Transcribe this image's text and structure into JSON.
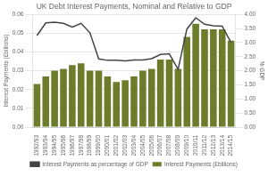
{
  "chart_data": {
    "type": "bar",
    "title": "UK Debt Interest Payments, Nominal and Relative to GDP",
    "categories": [
      "1992/93",
      "1993/94",
      "1994/95",
      "1995/96",
      "1996/97",
      "1997/98",
      "1998/99",
      "1999/00",
      "2000/01",
      "2001/02",
      "2002/03",
      "2003/04",
      "2004/05",
      "2005/06",
      "2006/07",
      "2007/08",
      "2008/09",
      "2009/10",
      "2010/11",
      "2011/12",
      "2012/13",
      "2013/14",
      "2014/15"
    ],
    "series": [
      {
        "name": "Interest Payments (£billions)",
        "type": "bar",
        "color": "#6b7c2a",
        "values": [
          0.023,
          0.027,
          0.03,
          0.031,
          0.033,
          0.034,
          0.03,
          0.03,
          0.027,
          0.024,
          0.025,
          0.027,
          0.03,
          0.031,
          0.036,
          0.036,
          0.031,
          0.048,
          0.055,
          0.052,
          0.052,
          0.052,
          0.046
        ]
      },
      {
        "name": "Interest Payments as percentage of GDP",
        "type": "line",
        "color": "#444444",
        "axis": "y2",
        "values": [
          3.25,
          3.7,
          3.72,
          3.68,
          3.55,
          3.68,
          3.35,
          2.42,
          2.37,
          2.37,
          2.35,
          2.38,
          2.38,
          2.43,
          2.58,
          2.6,
          2.05,
          3.48,
          3.88,
          3.65,
          3.6,
          3.58,
          3.0
        ]
      }
    ],
    "ylabel": "Interest Payments (£billions)",
    "y2label": "% GDP",
    "ylim": [
      0.0,
      0.06
    ],
    "yticks": [
      {
        "value": 0,
        "label": "0.00"
      },
      0.01,
      0.02,
      0.03,
      0.04,
      0.05,
      0.06
    ],
    "y2lim": [
      0.0,
      4.0
    ],
    "y2ticks": [
      {
        "value": 0,
        "label": "0.00"
      },
      {
        "value": 0.5,
        "label": "0.50"
      },
      {
        "value": 1,
        "label": "1.00"
      },
      {
        "value": 1.5,
        "label": "1.50"
      },
      {
        "value": 2,
        "label": "2.00"
      },
      {
        "value": 2.5,
        "label": "2.50"
      },
      {
        "value": 3,
        "label": "3.00"
      },
      {
        "value": 3.5,
        "label": "3.50"
      },
      {
        "value": 4,
        "label": "4.00"
      }
    ],
    "grid": true,
    "legend": "bottom"
  }
}
